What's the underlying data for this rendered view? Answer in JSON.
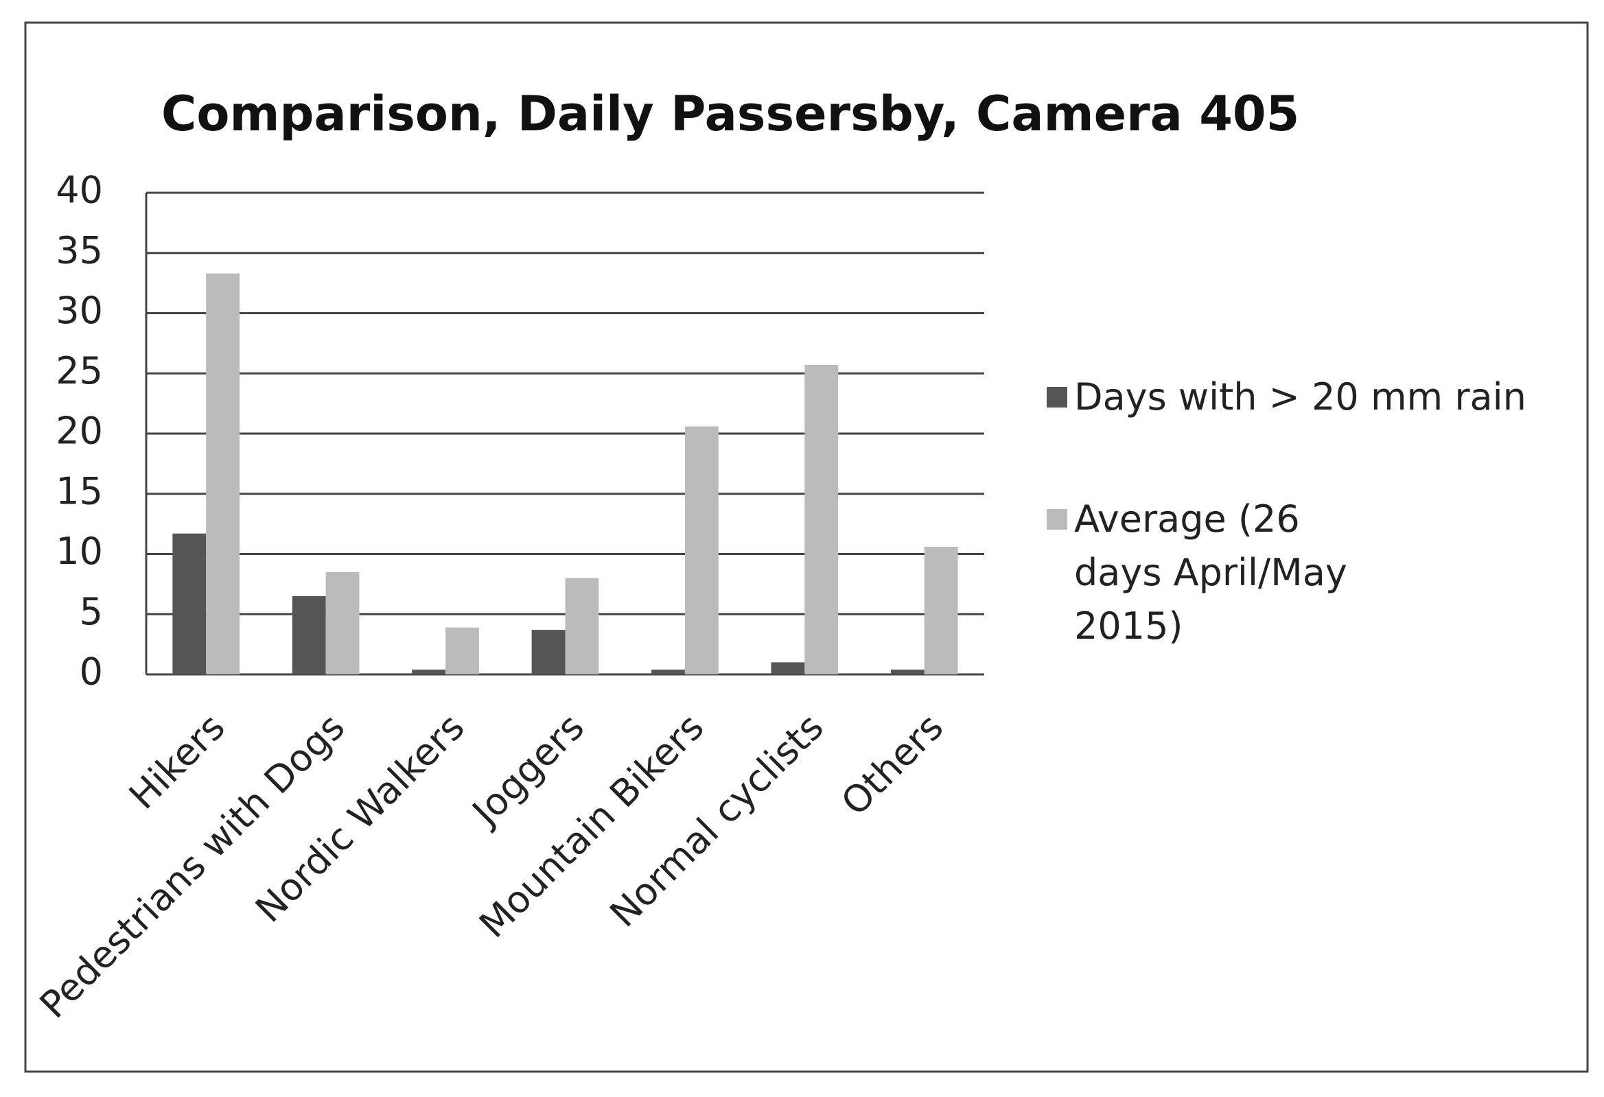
{
  "chart_data": {
    "type": "bar",
    "title": "Comparison, Daily Passersby, Camera 405",
    "categories": [
      "Hikers",
      "Pedestrians with Dogs",
      "Nordic Walkers",
      "Joggers",
      "Mountain Bikers",
      "Normal cyclists",
      "Others"
    ],
    "series": [
      {
        "name": "Days with > 20 mm rain",
        "color": "#555555",
        "values": [
          11.7,
          6.5,
          0.4,
          3.7,
          0.4,
          1.0,
          0.4
        ]
      },
      {
        "name": "Average (26 days April/May 2015)",
        "color": "#bbbbbb",
        "values": [
          33.3,
          8.5,
          3.9,
          8.0,
          20.6,
          25.7,
          10.6
        ]
      }
    ],
    "ylim": [
      0,
      40
    ],
    "yticks": [
      0,
      5,
      10,
      15,
      20,
      25,
      30,
      35,
      40
    ],
    "grid": true,
    "legend": "right"
  }
}
